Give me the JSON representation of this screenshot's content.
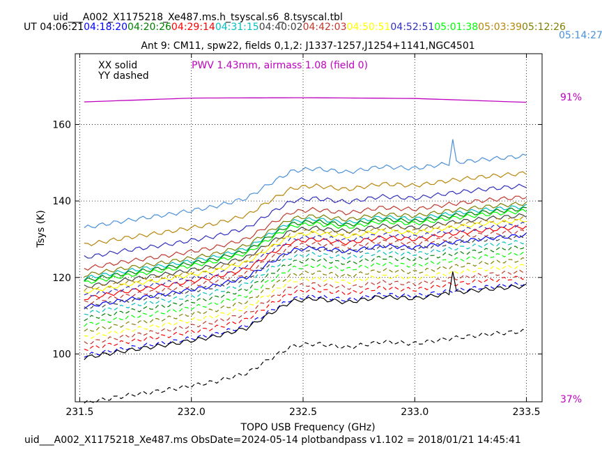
{
  "title": "uid___A002_X1175218_Xe487.ms.h_tsyscal.s6_8.tsyscal.tbl",
  "footer": "uid___A002_X1175218_Xe487.ms  ObsDate=2024-05-14   plotbandpass v1.102 = 2018/01/21 14:45:41",
  "ut_prefix": "UT",
  "colors": {
    "axes": "#000000",
    "pwv": "#bf00bf"
  },
  "times": [
    {
      "label": "04:06:21",
      "color": "#000000"
    },
    {
      "label": "04:18:20",
      "color": "#0000ff"
    },
    {
      "label": "04:20:26",
      "color": "#008000"
    },
    {
      "label": "04:29:14",
      "color": "#ff0000"
    },
    {
      "label": "04:31:15",
      "color": "#00bfbf"
    },
    {
      "label": "04:40:02",
      "color": "#404040"
    },
    {
      "label": "04:42:03",
      "color": "#c0392b"
    },
    {
      "label": "04:50:51",
      "color": "#ffff00"
    },
    {
      "label": "04:52:51",
      "color": "#2f2fbf"
    },
    {
      "label": "05:01:38",
      "color": "#00ff00"
    },
    {
      "label": "05:03:39",
      "color": "#b8860b"
    },
    {
      "label": "05:12:26",
      "color": "#808000"
    },
    {
      "label": "05:14:27",
      "color": "#4a90d9"
    }
  ],
  "chart_data": {
    "type": "line",
    "subtitle": "Ant 9: CM11,  spw22,  fields 0,1,2: J1337-1257,J1254+1141,NGC4501",
    "xlabel": "TOPO USB Frequency (GHz)",
    "ylabel": "Tsys (K)",
    "xlim": [
      231.48,
      233.57
    ],
    "ylim": [
      87.5,
      178.5
    ],
    "xticks": [
      231.5,
      232.0,
      232.5,
      233.0,
      233.5
    ],
    "xtick_labels": [
      "231.5",
      "232.0",
      "232.5",
      "233.0",
      "233.5"
    ],
    "yticks": [
      100,
      120,
      140,
      160
    ],
    "ytick_labels": [
      "100",
      "120",
      "140",
      "160"
    ],
    "grid": true,
    "legend_notes": [
      "XX solid",
      "YY dashed"
    ],
    "pwv_note": "PWV 1.43mm, airmass 1.08 (field 0)",
    "atm_right_labels": {
      "top": "91%",
      "bottom": "37%"
    },
    "pwv_curve": {
      "x": [
        231.52,
        232.0,
        232.5,
        233.0,
        233.5
      ],
      "y": [
        165.9,
        166.9,
        167.0,
        166.8,
        165.8
      ]
    },
    "spike_x": 233.17,
    "shape": {
      "x": [
        231.52,
        231.7,
        231.9,
        232.1,
        232.25,
        232.35,
        232.45,
        232.55,
        232.7,
        232.85,
        233.0,
        233.15,
        233.3,
        233.5
      ],
      "offset": [
        0,
        1.8,
        3.5,
        5.5,
        7.8,
        11.5,
        14.8,
        15.5,
        14.5,
        16.0,
        15.5,
        16.8,
        17.8,
        18.8
      ]
    },
    "series": [
      {
        "pol": "XX",
        "color": "#4a90d9",
        "start": 133.0,
        "spike": 6
      },
      {
        "pol": "XX",
        "color": "#b8860b",
        "start": 128.5,
        "spike": 0
      },
      {
        "pol": "XX",
        "color": "#2f2fbf",
        "start": 125.2,
        "spike": 0
      },
      {
        "pol": "XX",
        "color": "#c0392b",
        "start": 122.3,
        "spike": 0
      },
      {
        "pol": "XX",
        "color": "#808000",
        "start": 120.6,
        "spike": 0
      },
      {
        "pol": "XX",
        "color": "#00bfbf",
        "start": 119.8,
        "spike": 0
      },
      {
        "pol": "XX",
        "color": "#008000",
        "start": 119.2,
        "spike": 0
      },
      {
        "pol": "XX",
        "color": "#00ff00",
        "start": 118.6,
        "spike": 0
      },
      {
        "pol": "XX",
        "color": "#404040",
        "start": 117.5,
        "spike": 0
      },
      {
        "pol": "XX",
        "color": "#ffff00",
        "start": 116.2,
        "spike": 0
      },
      {
        "pol": "XX",
        "color": "#ff0000",
        "start": 114.5,
        "spike": 0
      },
      {
        "pol": "XX",
        "color": "#0000ff",
        "start": 112.3,
        "spike": 0
      },
      {
        "pol": "YY",
        "color": "#b8860b",
        "start": 116.8,
        "spike": 0
      },
      {
        "pol": "YY",
        "color": "#2f2fbf",
        "start": 115.2,
        "spike": 0
      },
      {
        "pol": "YY",
        "color": "#c0392b",
        "start": 113.4,
        "spike": 0
      },
      {
        "pol": "YY",
        "color": "#404040",
        "start": 112.0,
        "spike": 0
      },
      {
        "pol": "YY",
        "color": "#00bfbf",
        "start": 110.6,
        "spike": 0
      },
      {
        "pol": "YY",
        "color": "#008000",
        "start": 109.2,
        "spike": 0
      },
      {
        "pol": "YY",
        "color": "#00ff00",
        "start": 107.6,
        "spike": 0
      },
      {
        "pol": "YY",
        "color": "#808000",
        "start": 105.9,
        "spike": 0
      },
      {
        "pol": "YY",
        "color": "#ffff00",
        "start": 104.3,
        "spike": 0
      },
      {
        "pol": "YY",
        "color": "#c0392b",
        "start": 102.8,
        "spike": 0
      },
      {
        "pol": "YY",
        "color": "#ff0000",
        "start": 101.3,
        "spike": 0
      },
      {
        "pol": "YY",
        "color": "#0000ff",
        "start": 99.6,
        "spike": 0
      },
      {
        "pol": "XX",
        "color": "#000000",
        "start": 99.0,
        "spike": 6
      },
      {
        "pol": "YY",
        "color": "#000000",
        "start": 87.2,
        "spike": 0
      }
    ]
  }
}
